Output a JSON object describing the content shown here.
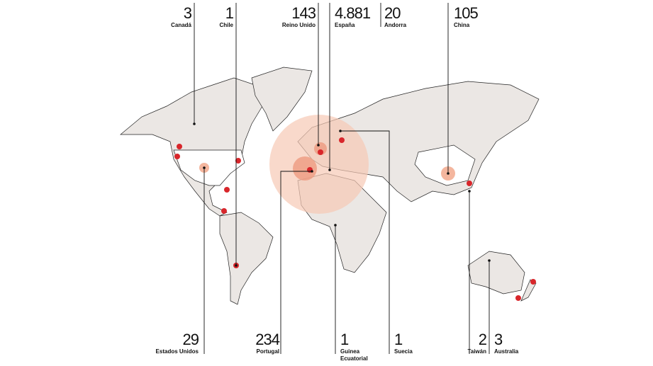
{
  "top_labels": [
    {
      "count": "3",
      "name": [
        "Canadá"
      ]
    },
    {
      "count": "1",
      "name": [
        "Chile"
      ]
    },
    {
      "count": "143",
      "name": [
        "Reino Unido"
      ]
    },
    {
      "count": "4.881",
      "name": [
        "España"
      ]
    },
    {
      "count": "20",
      "name": [
        "Andorra"
      ]
    },
    {
      "count": "105",
      "name": [
        "China"
      ]
    }
  ],
  "bottom_labels": [
    {
      "count": "29",
      "name": [
        "Estados Unidos"
      ]
    },
    {
      "count": "234",
      "name": [
        "Portugal"
      ]
    },
    {
      "count": "1",
      "name": [
        "Guinea",
        "Ecuatorial"
      ]
    },
    {
      "count": "1",
      "name": [
        "Suecia"
      ]
    },
    {
      "count": "2",
      "name": [
        "Taiwán"
      ]
    },
    {
      "count": "3",
      "name": [
        "Australia"
      ]
    }
  ]
}
